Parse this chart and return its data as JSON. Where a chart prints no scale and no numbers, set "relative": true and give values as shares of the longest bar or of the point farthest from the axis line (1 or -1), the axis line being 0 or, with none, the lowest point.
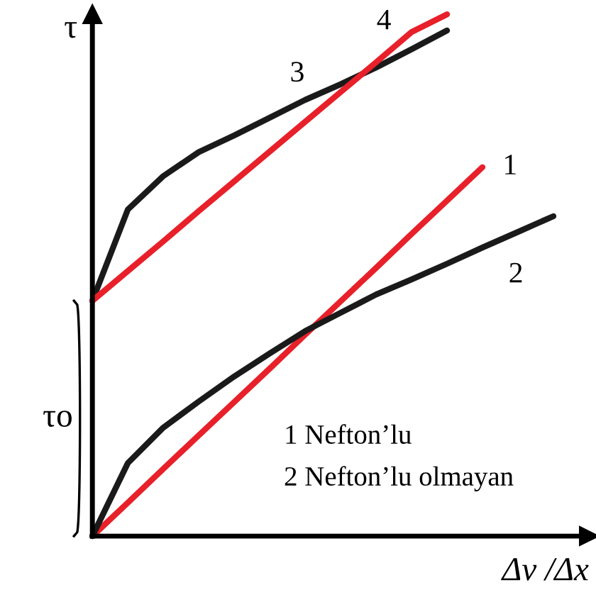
{
  "chart_data": {
    "type": "line",
    "relative": true,
    "xlabel": "Δv /Δx",
    "ylabel": "τ",
    "categories": [
      null,
      null,
      null,
      null,
      null,
      null,
      null,
      null,
      null,
      null,
      null,
      null,
      null,
      null,
      null
    ],
    "series": [
      {
        "name": "1",
        "color": "#e8202a",
        "values": [
          0,
          0.064,
          0.129,
          0.193,
          0.257,
          0.321,
          0.386,
          0.45,
          0.514,
          0.579,
          0.643,
          0.707,
          null,
          null,
          null
        ]
      },
      {
        "name": "2",
        "color": "#1a1a1a",
        "values": [
          0,
          0.14,
          0.208,
          0.258,
          0.306,
          0.35,
          0.393,
          0.428,
          0.463,
          0.492,
          0.522,
          0.553,
          0.583,
          0.613,
          null
        ]
      },
      {
        "name": "3",
        "color": "#1a1a1a",
        "values": [
          0.451,
          0.626,
          0.69,
          0.736,
          0.768,
          0.802,
          0.836,
          0.866,
          0.898,
          0.933,
          0.969,
          null,
          null,
          null,
          null
        ]
      },
      {
        "name": "4",
        "color": "#e8202a",
        "values": [
          0.451,
          0.508,
          0.565,
          0.623,
          0.68,
          0.737,
          0.794,
          0.851,
          0.908,
          0.966,
          1.0,
          null,
          null,
          null,
          null
        ]
      }
    ],
    "annotations": [
      "τo",
      "1 Nefton’lu",
      "2 Nefton’lu olmayan"
    ],
    "marker": "none",
    "line_style": "solid"
  }
}
